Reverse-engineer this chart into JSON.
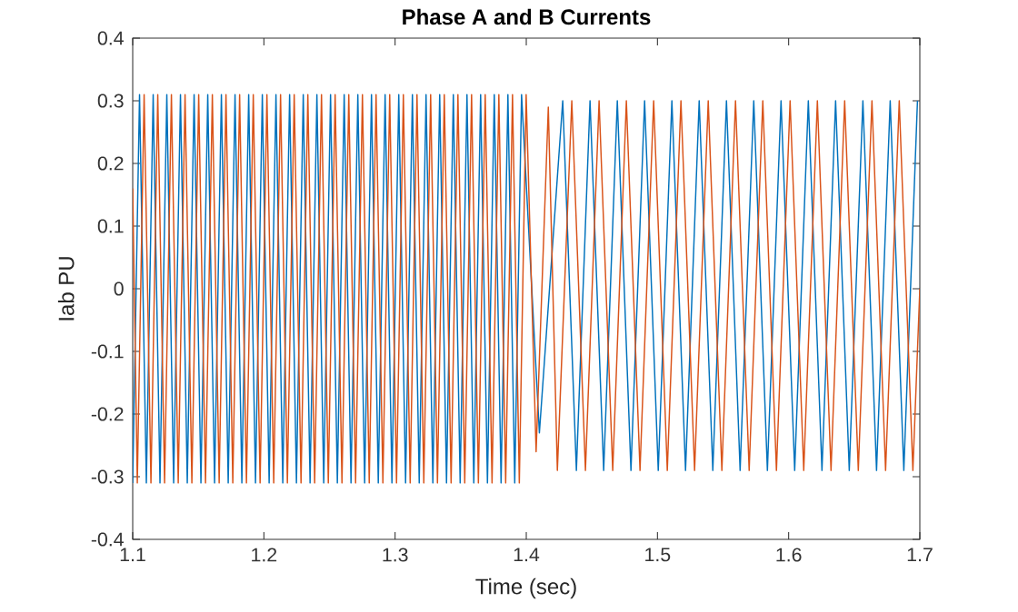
{
  "chart_data": {
    "type": "line",
    "title": "Phase A and B Currents",
    "xlabel": "Time (sec)",
    "ylabel": "Iab PU",
    "xlim": [
      1.1,
      1.7
    ],
    "xticks": [
      1.1,
      1.2,
      1.3,
      1.4,
      1.5,
      1.6,
      1.7
    ],
    "ylim": [
      -0.4,
      0.4
    ],
    "yticks": [
      -0.4,
      -0.3,
      -0.2,
      -0.1,
      0,
      0.1,
      0.2,
      0.3,
      0.4
    ],
    "grid": false,
    "legend": false,
    "marker": "none",
    "line_style": "solid",
    "series": [
      {
        "color": "#0072bd",
        "x": [
          1.1,
          1.1052,
          1.1104,
          1.1156,
          1.1208,
          1.126,
          1.1312,
          1.1364,
          1.1416,
          1.1468,
          1.152,
          1.1572,
          1.1624,
          1.1676,
          1.1728,
          1.178,
          1.1832,
          1.1884,
          1.1936,
          1.1988,
          1.204,
          1.2092,
          1.2144,
          1.2196,
          1.2248,
          1.23,
          1.2352,
          1.2404,
          1.2456,
          1.2508,
          1.256,
          1.2612,
          1.2664,
          1.2716,
          1.2768,
          1.282,
          1.2872,
          1.2924,
          1.2976,
          1.3028,
          1.308,
          1.3132,
          1.3184,
          1.3236,
          1.3288,
          1.334,
          1.3392,
          1.3444,
          1.3496,
          1.3548,
          1.36,
          1.3652,
          1.3704,
          1.3756,
          1.3808,
          1.386,
          1.3912,
          1.3964,
          1.41,
          1.4278,
          1.4382,
          1.4486,
          1.459,
          1.4694,
          1.4798,
          1.4902,
          1.5006,
          1.511,
          1.5214,
          1.5318,
          1.5422,
          1.5526,
          1.563,
          1.5734,
          1.5838,
          1.5942,
          1.6046,
          1.615,
          1.6254,
          1.6358,
          1.6462,
          1.6566,
          1.667,
          1.6774,
          1.6878,
          1.6982
        ],
        "values": [
          -0.31,
          0.31,
          -0.31,
          0.31,
          -0.31,
          0.31,
          -0.31,
          0.31,
          -0.31,
          0.31,
          -0.31,
          0.31,
          -0.31,
          0.31,
          -0.31,
          0.31,
          -0.31,
          0.31,
          -0.31,
          0.31,
          -0.31,
          0.31,
          -0.31,
          0.31,
          -0.31,
          0.31,
          -0.31,
          0.31,
          -0.31,
          0.31,
          -0.31,
          0.31,
          -0.31,
          0.31,
          -0.31,
          0.31,
          -0.31,
          0.31,
          -0.31,
          0.31,
          -0.31,
          0.31,
          -0.31,
          0.31,
          -0.31,
          0.31,
          -0.31,
          0.31,
          -0.31,
          0.31,
          -0.31,
          0.31,
          -0.31,
          0.31,
          -0.31,
          0.31,
          -0.31,
          0.31,
          -0.23,
          0.3,
          -0.29,
          0.3,
          -0.29,
          0.3,
          -0.29,
          0.3,
          -0.29,
          0.3,
          -0.29,
          0.3,
          -0.29,
          0.3,
          -0.29,
          0.3,
          -0.29,
          0.3,
          -0.29,
          0.3,
          -0.29,
          0.3,
          -0.29,
          0.3,
          -0.29,
          0.3,
          -0.29,
          0.3
        ]
      },
      {
        "color": "#d95319",
        "x": [
          1.1,
          1.1035,
          1.1087,
          1.1139,
          1.1191,
          1.1243,
          1.1295,
          1.1347,
          1.1399,
          1.1451,
          1.1503,
          1.1555,
          1.1607,
          1.1659,
          1.1711,
          1.1763,
          1.1815,
          1.1867,
          1.1919,
          1.1971,
          1.2023,
          1.2075,
          1.2127,
          1.2179,
          1.2231,
          1.2283,
          1.2335,
          1.2387,
          1.2439,
          1.2491,
          1.2543,
          1.2595,
          1.2647,
          1.2699,
          1.2751,
          1.2803,
          1.2855,
          1.2907,
          1.2959,
          1.3011,
          1.3063,
          1.3115,
          1.3167,
          1.3219,
          1.3271,
          1.3323,
          1.3375,
          1.3427,
          1.3479,
          1.3531,
          1.3583,
          1.3635,
          1.3687,
          1.3739,
          1.3791,
          1.3843,
          1.3895,
          1.3947,
          1.3999,
          1.4075,
          1.4168,
          1.4237,
          1.4347,
          1.4451,
          1.4555,
          1.4659,
          1.4763,
          1.4867,
          1.4971,
          1.5075,
          1.5179,
          1.5283,
          1.5387,
          1.5491,
          1.5595,
          1.5699,
          1.5803,
          1.5907,
          1.6011,
          1.6115,
          1.6219,
          1.6323,
          1.6427,
          1.6531,
          1.6635,
          1.6739,
          1.6843,
          1.6947,
          1.7
        ],
        "values": [
          0.16,
          -0.31,
          0.31,
          -0.31,
          0.31,
          -0.31,
          0.31,
          -0.31,
          0.31,
          -0.31,
          0.31,
          -0.31,
          0.31,
          -0.31,
          0.31,
          -0.31,
          0.31,
          -0.31,
          0.31,
          -0.31,
          0.31,
          -0.31,
          0.31,
          -0.31,
          0.31,
          -0.31,
          0.31,
          -0.31,
          0.31,
          -0.31,
          0.31,
          -0.31,
          0.31,
          -0.31,
          0.31,
          -0.31,
          0.31,
          -0.31,
          0.31,
          -0.31,
          0.31,
          -0.31,
          0.31,
          -0.31,
          0.31,
          -0.31,
          0.31,
          -0.31,
          0.31,
          -0.31,
          0.31,
          -0.31,
          0.31,
          -0.31,
          0.31,
          -0.31,
          0.31,
          -0.31,
          0.31,
          -0.26,
          0.29,
          -0.29,
          0.3,
          -0.29,
          0.3,
          -0.29,
          0.3,
          -0.29,
          0.3,
          -0.29,
          0.3,
          -0.29,
          0.3,
          -0.29,
          0.3,
          -0.29,
          0.3,
          -0.29,
          0.3,
          -0.29,
          0.3,
          -0.29,
          0.3,
          -0.29,
          0.3,
          -0.29,
          0.3,
          -0.29,
          0
        ]
      }
    ]
  }
}
